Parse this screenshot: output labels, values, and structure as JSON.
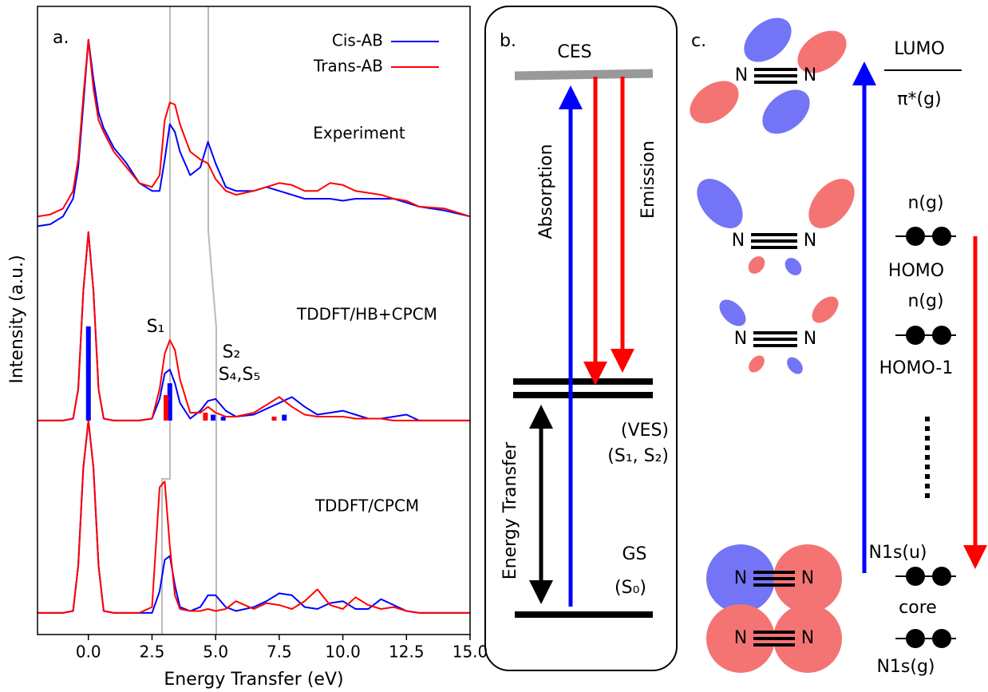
{
  "chart_data": {
    "type": "line",
    "panel_label": "a.",
    "xlabel": "Energy Transfer (eV)",
    "ylabel": "Intensity (a.u.)",
    "xlim": [
      -2,
      15
    ],
    "ylim": [
      0,
      3.2
    ],
    "xticks": [
      {
        "value": 0,
        "label": "0.0"
      },
      {
        "value": 2.5,
        "label": "2.5"
      },
      {
        "value": 5,
        "label": "5.0"
      },
      {
        "value": 7.5,
        "label": "7.5"
      },
      {
        "value": 10,
        "label": "10.0"
      },
      {
        "value": 12.5,
        "label": "12.5"
      },
      {
        "value": 15,
        "label": "15.0"
      }
    ],
    "legend": "upper right",
    "curve_labels": [
      "Experiment",
      "TDDFT/HB+CPCM",
      "TDDFT/CPCM"
    ],
    "annotations": [
      {
        "text": "S₁",
        "color": "#000000"
      },
      {
        "text": "S₂",
        "color": "#000000"
      },
      {
        "text": "S₄,S₅",
        "color": "#0000ff"
      }
    ],
    "stick_base": 1.09,
    "x": [
      -2,
      -1.5,
      -1,
      -0.6,
      -0.4,
      -0.2,
      0,
      0.2,
      0.4,
      0.6,
      1,
      1.5,
      2,
      2.5,
      2.8,
      3,
      3.2,
      3.4,
      3.6,
      4,
      4.4,
      4.7,
      5,
      5.4,
      5.8,
      6.5,
      7,
      7.5,
      8,
      8.5,
      9,
      9.5,
      10,
      10.5,
      11,
      11.5,
      12,
      12.5,
      13,
      14,
      15
    ],
    "series": [
      {
        "name": "Cis-AB",
        "color": "#0000ff",
        "curves": [
          [
            2.08,
            2.09,
            2.13,
            2.22,
            2.38,
            2.7,
            3.03,
            2.83,
            2.66,
            2.58,
            2.48,
            2.4,
            2.3,
            2.26,
            2.26,
            2.42,
            2.6,
            2.56,
            2.46,
            2.34,
            2.38,
            2.51,
            2.4,
            2.28,
            2.26,
            2.26,
            2.28,
            2.26,
            2.24,
            2.22,
            2.22,
            2.22,
            2.21,
            2.22,
            2.22,
            2.22,
            2.22,
            2.2,
            2.18,
            2.16,
            2.13
          ],
          [
            1.09,
            1.09,
            1.09,
            1.1,
            1.25,
            1.75,
            2.05,
            1.75,
            1.25,
            1.1,
            1.09,
            1.09,
            1.09,
            1.1,
            1.2,
            1.33,
            1.35,
            1.28,
            1.18,
            1.1,
            1.14,
            1.19,
            1.2,
            1.14,
            1.11,
            1.12,
            1.15,
            1.18,
            1.21,
            1.16,
            1.12,
            1.13,
            1.14,
            1.12,
            1.1,
            1.1,
            1.11,
            1.12,
            1.09,
            1.09,
            1.09
          ],
          [
            0.11,
            0.11,
            0.11,
            0.12,
            0.35,
            0.85,
            1.09,
            0.85,
            0.35,
            0.12,
            0.11,
            0.11,
            0.11,
            0.11,
            0.22,
            0.38,
            0.4,
            0.25,
            0.14,
            0.12,
            0.14,
            0.2,
            0.2,
            0.14,
            0.12,
            0.14,
            0.17,
            0.21,
            0.2,
            0.14,
            0.13,
            0.16,
            0.17,
            0.13,
            0.13,
            0.18,
            0.15,
            0.12,
            0.11,
            0.11,
            0.11
          ]
        ],
        "sticks": {
          "x": [
            0,
            3.2,
            4.9,
            5.3,
            7.7
          ],
          "values": [
            1.57,
            1.28,
            1.12,
            1.11,
            1.12
          ]
        }
      },
      {
        "name": "Trans-AB",
        "color": "#ff0000",
        "curves": [
          [
            2.13,
            2.14,
            2.17,
            2.26,
            2.42,
            2.74,
            3.03,
            2.78,
            2.62,
            2.56,
            2.46,
            2.38,
            2.3,
            2.28,
            2.34,
            2.62,
            2.71,
            2.7,
            2.6,
            2.46,
            2.42,
            2.4,
            2.32,
            2.26,
            2.24,
            2.26,
            2.28,
            2.3,
            2.29,
            2.26,
            2.26,
            2.3,
            2.29,
            2.26,
            2.25,
            2.24,
            2.22,
            2.21,
            2.18,
            2.17,
            2.13
          ],
          [
            1.09,
            1.09,
            1.09,
            1.1,
            1.25,
            1.75,
            2.05,
            1.75,
            1.25,
            1.1,
            1.09,
            1.09,
            1.09,
            1.1,
            1.25,
            1.43,
            1.5,
            1.45,
            1.3,
            1.13,
            1.13,
            1.16,
            1.13,
            1.11,
            1.11,
            1.13,
            1.17,
            1.21,
            1.16,
            1.12,
            1.11,
            1.11,
            1.11,
            1.1,
            1.1,
            1.1,
            1.09,
            1.09,
            1.09,
            1.09,
            1.09
          ],
          [
            0.11,
            0.11,
            0.11,
            0.12,
            0.35,
            0.85,
            1.09,
            0.85,
            0.35,
            0.12,
            0.11,
            0.11,
            0.11,
            0.14,
            0.75,
            0.78,
            0.45,
            0.2,
            0.13,
            0.12,
            0.12,
            0.13,
            0.12,
            0.13,
            0.17,
            0.13,
            0.16,
            0.15,
            0.13,
            0.17,
            0.23,
            0.15,
            0.13,
            0.19,
            0.15,
            0.13,
            0.14,
            0.12,
            0.11,
            0.11,
            0.11
          ]
        ],
        "sticks": {
          "x": [
            3.05,
            4.6,
            7.3
          ],
          "values": [
            1.22,
            1.13,
            1.11
          ]
        }
      }
    ]
  },
  "diagram_b": {
    "panel_label": "b.",
    "ces": "CES",
    "absorption": "Absorption",
    "emission": "Emission",
    "ves": "(VES)",
    "ves_states": "(S₁, S₂)",
    "energy_transfer": "Energy Transfer",
    "gs": "GS",
    "gs_state": "(S₀)"
  },
  "diagram_c": {
    "panel_label": "c.",
    "atom": "N",
    "lumo": "LUMO",
    "lumo_sym": "π*(g)",
    "homo_sym": "n(g)",
    "homo": "HOMO",
    "homo1_sym": "n(g)",
    "homo1": "HOMO-1",
    "core_u": "N1s(u)",
    "core": "core",
    "core_g": "N1s(g)"
  }
}
